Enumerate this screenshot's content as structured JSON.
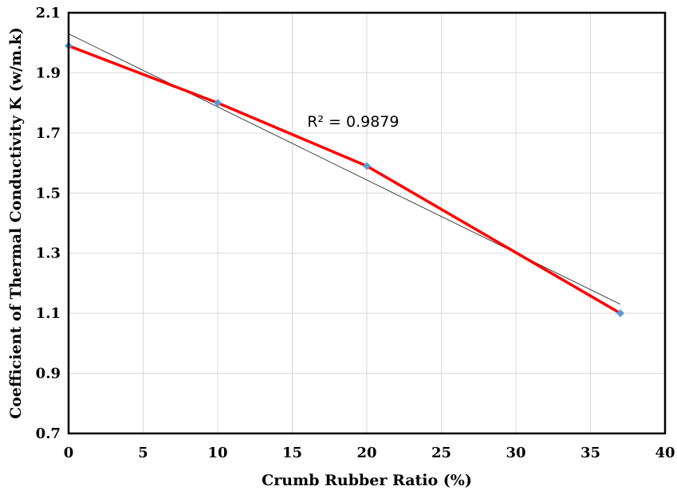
{
  "chart_data": {
    "type": "line",
    "title": "",
    "xlabel": "Crumb Rubber Ratio (%)",
    "ylabel": "Coefficient of  Thermal Conductivity K (w/m.k)",
    "xlim": [
      0,
      40
    ],
    "ylim": [
      0.7,
      2.1
    ],
    "x_ticks": [
      0,
      5,
      10,
      15,
      20,
      25,
      30,
      35,
      40
    ],
    "y_ticks": [
      0.7,
      0.9,
      1.1,
      1.3,
      1.5,
      1.7,
      1.9,
      2.1
    ],
    "x_tick_labels": [
      "0",
      "5",
      "10",
      "15",
      "20",
      "25",
      "30",
      "35",
      "40"
    ],
    "y_tick_labels": [
      "0.7",
      "0.9",
      "1.1",
      "1.3",
      "1.5",
      "1.7",
      "1.9",
      "2.1"
    ],
    "grid": true,
    "series": [
      {
        "x": [
          0,
          10,
          20,
          37
        ],
        "y": [
          1.99,
          1.8,
          1.59,
          1.1
        ],
        "line_color": "#ff0000",
        "marker_color": "#5b9bd5"
      }
    ],
    "trendline": {
      "type": "linear",
      "x": [
        0,
        37
      ],
      "y": [
        2.03,
        1.13
      ],
      "color": "#404040"
    },
    "annotations": [
      {
        "text": "R² = 0.9879",
        "x": 16,
        "y": 1.74
      }
    ]
  }
}
